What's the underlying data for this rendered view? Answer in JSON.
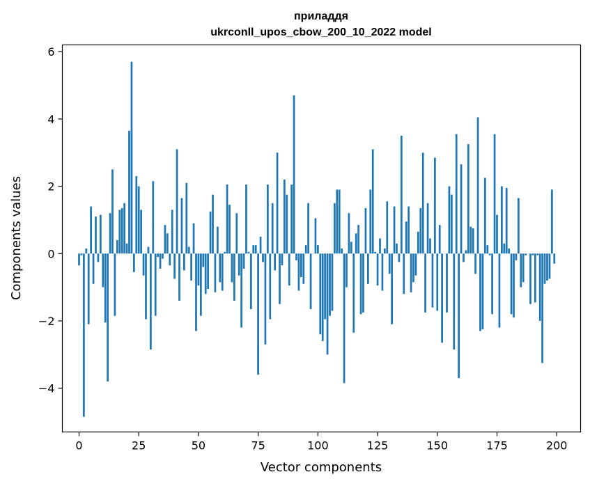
{
  "chart_data": {
    "type": "bar",
    "title_line1": "приладдя",
    "title_line2": "ukrconll_upos_cbow_200_10_2022 model",
    "xlabel": "Vector components",
    "ylabel": "Components values",
    "xlim": [
      -7,
      210
    ],
    "ylim": [
      -5.3,
      6.2
    ],
    "x_ticks": [
      0,
      25,
      50,
      75,
      100,
      125,
      150,
      175,
      200
    ],
    "y_ticks": [
      -4,
      -2,
      0,
      2,
      4,
      6
    ],
    "y_tick_labels": [
      "−4",
      "−2",
      "0",
      "2",
      "4",
      "6"
    ],
    "x_tick_labels": [
      "0",
      "25",
      "50",
      "75",
      "100",
      "125",
      "150",
      "175",
      "200"
    ],
    "bar_color": "#1f77b4",
    "bar_width": 0.8,
    "values": [
      -0.35,
      -0.05,
      -4.85,
      0.15,
      -2.1,
      1.4,
      -0.9,
      1.1,
      -0.25,
      1.15,
      -1.0,
      -2.05,
      -3.8,
      1.2,
      2.5,
      -1.85,
      0.4,
      1.3,
      1.35,
      1.5,
      0.3,
      3.65,
      5.7,
      -0.55,
      2.3,
      2.0,
      1.3,
      -0.65,
      -1.95,
      0.2,
      -2.85,
      2.15,
      -1.85,
      -0.1,
      -0.45,
      -0.15,
      0.85,
      0.6,
      -0.35,
      1.3,
      -0.75,
      3.1,
      -1.4,
      1.65,
      -0.5,
      2.1,
      0.2,
      -0.8,
      0.9,
      -2.3,
      -0.95,
      -1.85,
      -0.4,
      -1.2,
      -1.05,
      1.25,
      1.75,
      -1.15,
      0.8,
      -0.85,
      -1.1,
      0.05,
      2.05,
      1.45,
      -0.85,
      -1.4,
      1.2,
      -0.65,
      -2.2,
      -0.45,
      2.05,
      0.05,
      -1.65,
      0.25,
      0.25,
      -3.6,
      0.5,
      -0.25,
      -2.7,
      2.05,
      -1.95,
      1.5,
      -0.5,
      3.0,
      -1.5,
      -0.35,
      2.2,
      1.75,
      -0.95,
      2.05,
      4.7,
      -0.2,
      -1.1,
      -0.7,
      -0.9,
      0.25,
      1.5,
      -1.65,
      0.0,
      1.05,
      0.25,
      -2.4,
      -2.6,
      -1.95,
      -3.0,
      -1.85,
      -1.7,
      1.5,
      1.9,
      1.9,
      0.15,
      -3.85,
      -1.0,
      1.2,
      0.35,
      -2.35,
      0.6,
      0.85,
      -1.8,
      -1.75,
      1.35,
      -0.9,
      1.9,
      3.1,
      0.05,
      -0.95,
      0.45,
      -1.1,
      0.15,
      1.55,
      -0.6,
      -2.1,
      1.4,
      0.3,
      -0.25,
      3.5,
      -1.2,
      0.95,
      1.4,
      -1.15,
      -0.85,
      -0.65,
      0.65,
      1.35,
      3.0,
      -1.75,
      1.5,
      0.45,
      -1.6,
      2.85,
      -1.7,
      0.85,
      -2.65,
      0.0,
      -1.75,
      2.0,
      1.75,
      -2.85,
      3.55,
      -3.7,
      2.65,
      -0.25,
      0.1,
      3.25,
      0.8,
      0.75,
      -0.6,
      4.05,
      -2.3,
      -2.25,
      2.25,
      0.25,
      -0.05,
      -1.8,
      3.55,
      1.15,
      -2.2,
      2.0,
      0.3,
      1.95,
      0.15,
      -1.8,
      -1.9,
      -0.2,
      1.65,
      -1.0,
      -0.85,
      -0.05,
      0.0,
      -1.5,
      -0.05,
      -1.45,
      -0.05,
      -2.0,
      -3.25,
      -0.9,
      -0.8,
      -0.75,
      1.9,
      -0.3
    ]
  }
}
